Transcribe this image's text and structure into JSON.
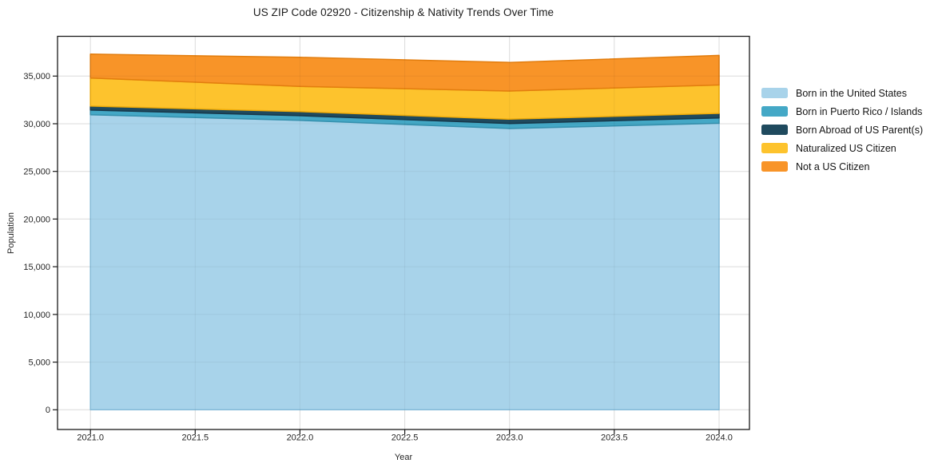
{
  "title": "US ZIP Code 02920 - Citizenship & Nativity Trends Over Time",
  "chart_data": {
    "type": "area",
    "stacked": true,
    "title": "US ZIP Code 02920 - Citizenship & Nativity Trends Over Time",
    "xlabel": "Year",
    "ylabel": "Population",
    "x": [
      2021.0,
      2022.0,
      2023.0,
      2024.0
    ],
    "series": [
      {
        "name": "Born in the United States",
        "color": "#a8d3ea",
        "edge_color": "#8ac2e0",
        "values": [
          30950,
          30350,
          29500,
          30050
        ]
      },
      {
        "name": "Born in Puerto Rico / Islands",
        "color": "#44a8c6",
        "edge_color": "#3691ae",
        "values": [
          480,
          500,
          530,
          560
        ]
      },
      {
        "name": "Born Abroad of US Parent(s)",
        "color": "#1f4a5e",
        "edge_color": "#17384a",
        "values": [
          420,
          420,
          450,
          480
        ]
      },
      {
        "name": "Naturalized US Citizen",
        "color": "#fdc32d",
        "edge_color": "#efab08",
        "values": [
          2950,
          2650,
          2950,
          2980
        ]
      },
      {
        "name": "Not a US Citizen",
        "color": "#f89428",
        "edge_color": "#e27d0e",
        "values": [
          2500,
          3050,
          3000,
          3100
        ]
      }
    ],
    "x_ticks": {
      "values": [
        2021.0,
        2021.5,
        2022.0,
        2022.5,
        2023.0,
        2023.5,
        2024.0
      ],
      "labels": [
        "2021.0",
        "2021.5",
        "2022.0",
        "2022.5",
        "2023.0",
        "2023.5",
        "2024.0"
      ]
    },
    "y_ticks": {
      "values": [
        0,
        5000,
        10000,
        15000,
        20000,
        25000,
        30000,
        35000
      ],
      "labels": [
        "0",
        "5,000",
        "10,000",
        "15,000",
        "20,000",
        "25,000",
        "30,000",
        "35,000"
      ]
    },
    "xlim": [
      2020.843,
      2024.145
    ],
    "ylim": [
      -2070,
      39170
    ],
    "grid": true,
    "grid_color": "#e7e7e7",
    "legend_position": "center right"
  }
}
